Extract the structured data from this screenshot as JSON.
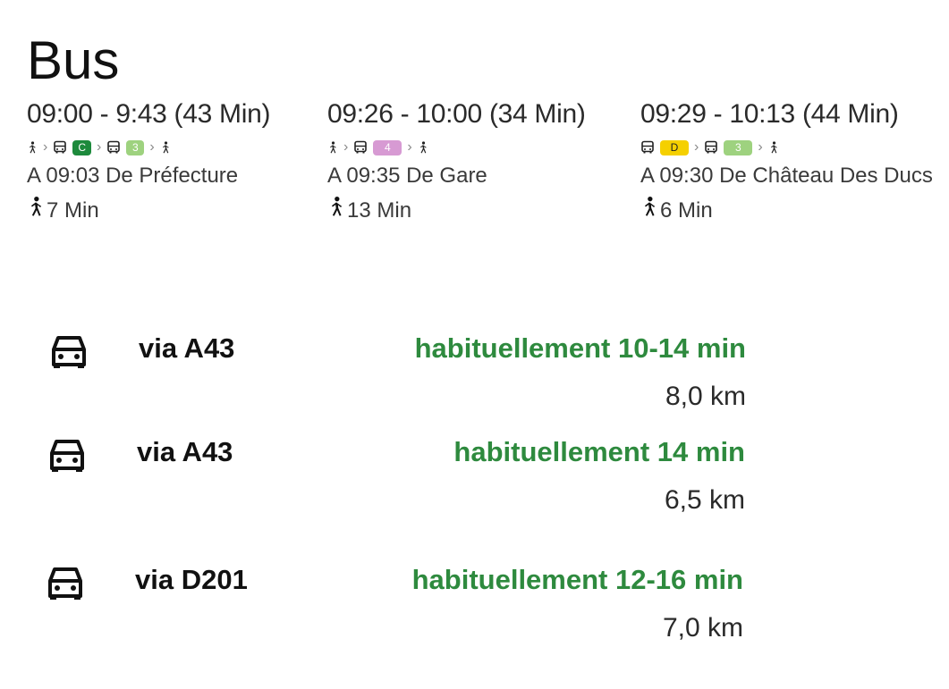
{
  "title": "Bus",
  "colors": {
    "accent_green": "#2e8a3e",
    "line_c_bg": "#1d8a3c",
    "line_c_fg": "#ffffff",
    "line_3_bg": "#9ed27f",
    "line_3_fg": "#ffffff",
    "line_4_bg": "#d79ad3",
    "line_4_fg": "#ffffff",
    "line_d_bg": "#f5d000",
    "line_d_fg": "#222222"
  },
  "routes": [
    {
      "time": "09:00 - 9:43 (43 Min)",
      "legs": [
        {
          "type": "walk",
          "icon": "walk-icon"
        },
        {
          "type": "bus",
          "icon": "bus-icon",
          "line": "C",
          "line_color": "#1d8a3c",
          "text_color": "#ffffff"
        },
        {
          "type": "bus",
          "icon": "bus-icon",
          "line": "3",
          "line_color": "#9ed27f",
          "text_color": "#ffffff"
        },
        {
          "type": "walk",
          "icon": "walk-icon"
        }
      ],
      "departure": "A 09:03 De Préfecture",
      "walk_time": "7 Min"
    },
    {
      "time": "09:26 - 10:00 (34 Min)",
      "legs": [
        {
          "type": "walk",
          "icon": "walk-icon"
        },
        {
          "type": "bus",
          "icon": "bus-icon",
          "line": "4",
          "line_color": "#d79ad3",
          "text_color": "#ffffff"
        },
        {
          "type": "walk",
          "icon": "walk-icon"
        }
      ],
      "departure": "A 09:35 De Gare",
      "walk_time": "13 Min"
    },
    {
      "time": "09:29 - 10:13 (44 Min)",
      "legs": [
        {
          "type": "bus",
          "icon": "bus-icon",
          "line": "D",
          "line_color": "#f5d000",
          "text_color": "#222222"
        },
        {
          "type": "bus",
          "icon": "bus-icon",
          "line": "3",
          "line_color": "#9ed27f",
          "text_color": "#ffffff"
        },
        {
          "type": "walk",
          "icon": "walk-icon"
        }
      ],
      "departure": "A 09:30 De Château Des Ducs",
      "walk_time": "6 Min"
    }
  ],
  "driving": [
    {
      "icon": "car-icon",
      "via": "via A43",
      "usual": "habituellement 10-14 min",
      "distance": "8,0 km"
    },
    {
      "icon": "car-icon",
      "via": "via A43",
      "usual": "habituellement 14 min",
      "distance": "6,5 km"
    },
    {
      "icon": "car-icon",
      "via": "via D201",
      "usual": "habituellement 12-16 min",
      "distance": "7,0 km"
    }
  ]
}
